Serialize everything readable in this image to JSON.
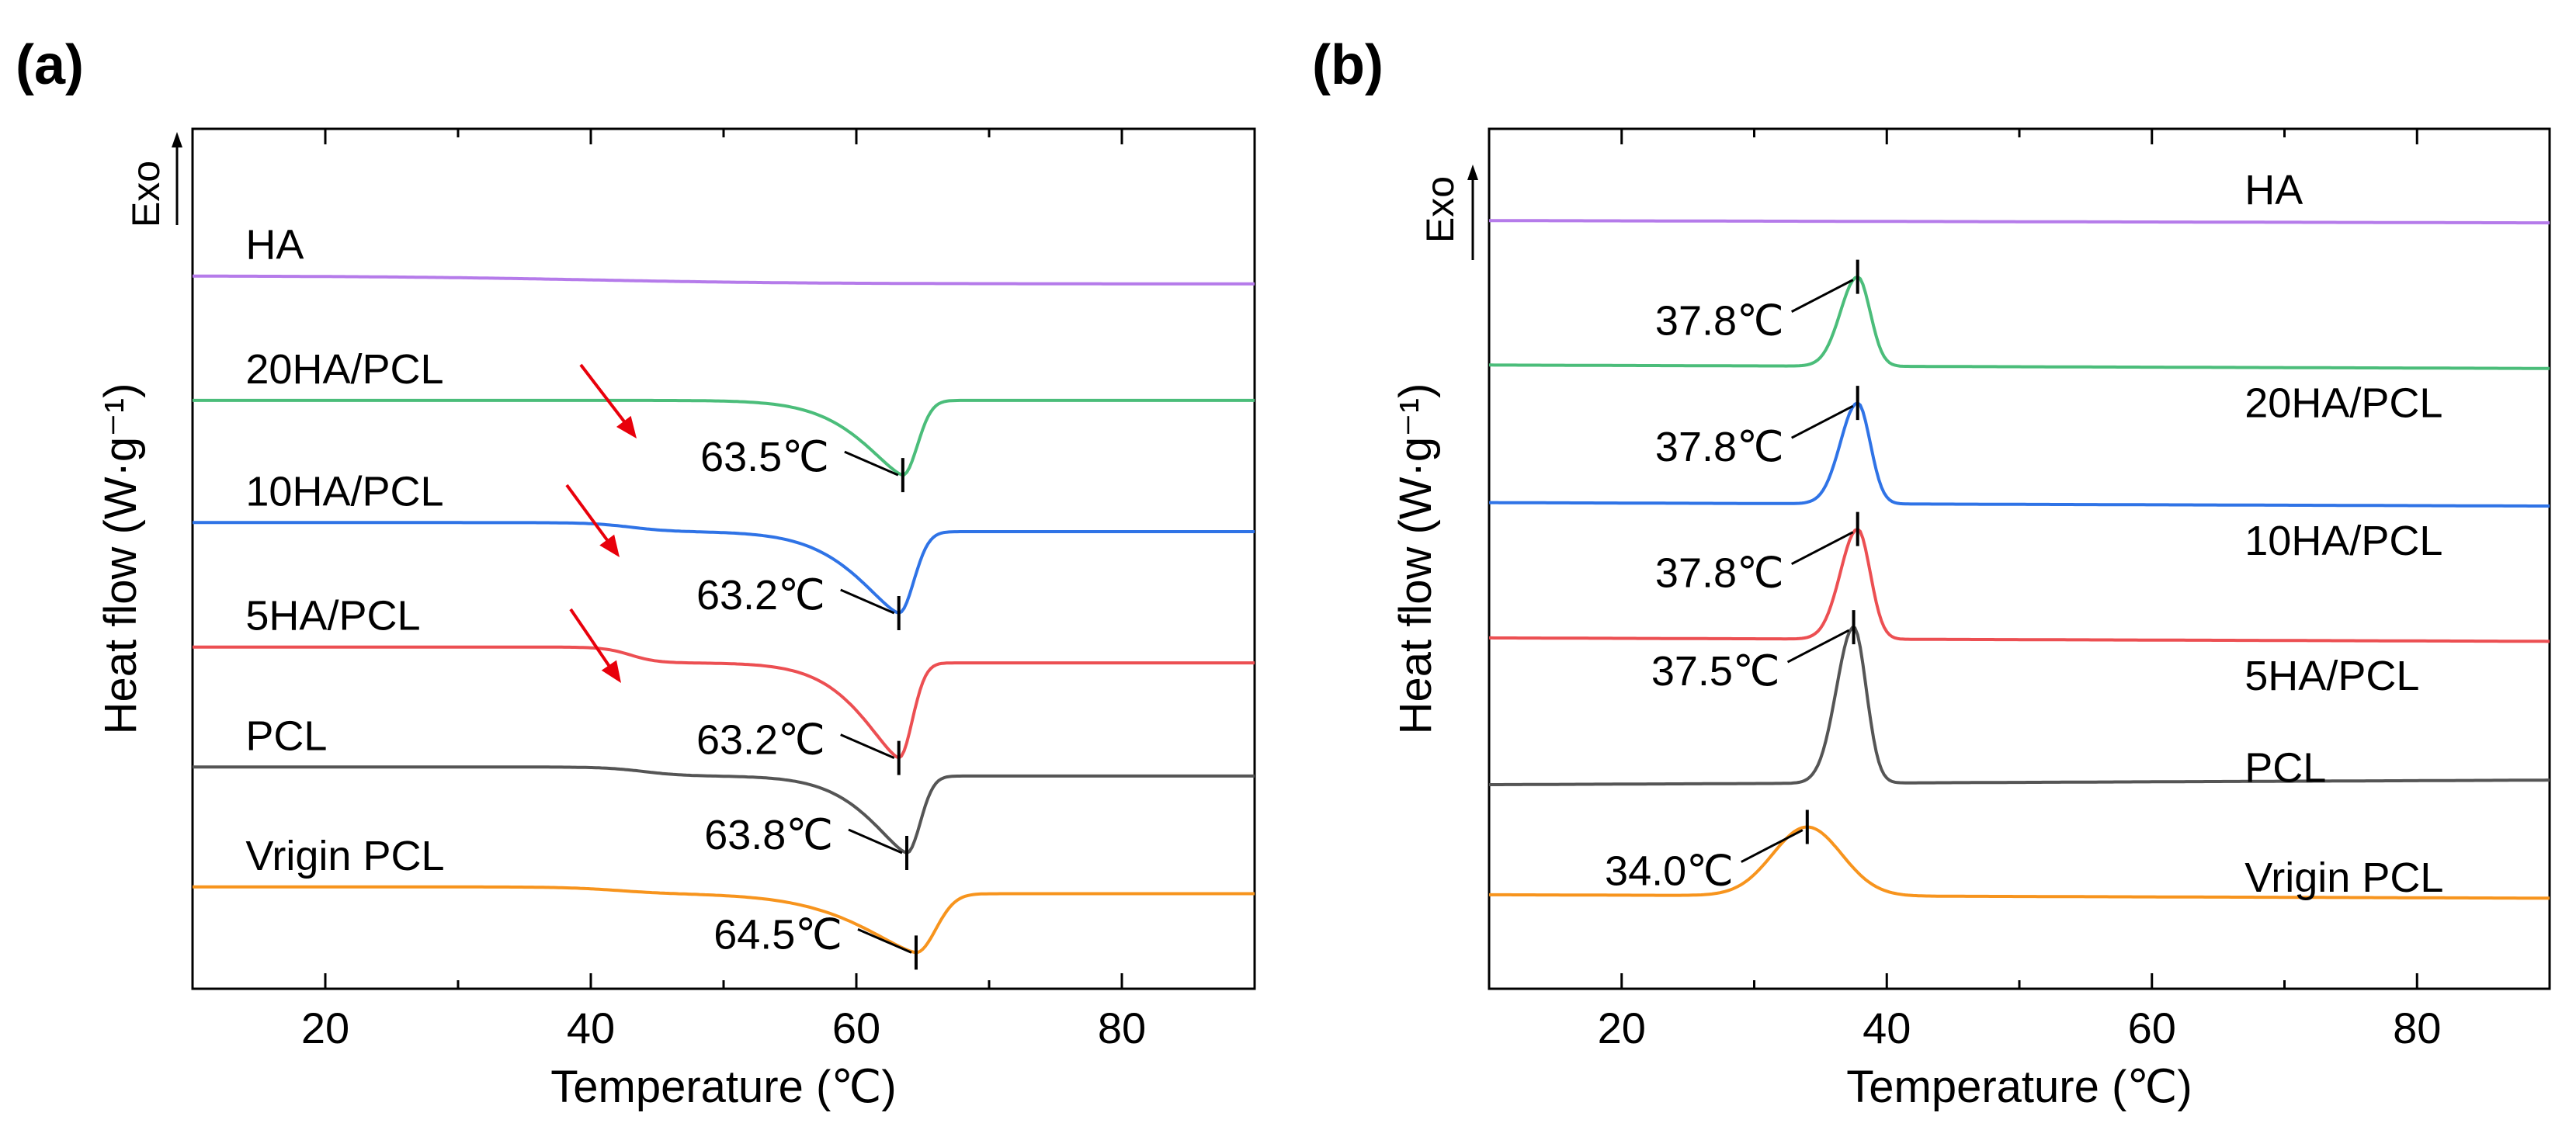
{
  "colors": {
    "HA": "#b57bea",
    "20HA/PCL": "#4bbd7a",
    "10HA/PCL": "#2f73e6",
    "5HA/PCL": "#ec4f52",
    "PCL": "#555555",
    "Vrigin PCL": "#f7941d",
    "arrow": "#e8000b"
  },
  "chart_data": [
    {
      "type": "line",
      "panel_label": "(a)",
      "xlabel": "Temperature (℃)",
      "ylabel": "Heat flow (W·g⁻¹)",
      "exo_label": "Exo",
      "xlim": [
        10,
        90
      ],
      "xticks": [
        "20",
        "40",
        "60",
        "80"
      ],
      "series": [
        {
          "name": "HA",
          "offset": 27.5,
          "peak": null,
          "peak_label": null
        },
        {
          "name": "20HA/PCL",
          "offset": 22.0,
          "peak": 63.5,
          "peak_label": "63.5℃"
        },
        {
          "name": "10HA/PCL",
          "offset": 16.6,
          "peak": 63.2,
          "peak_label": "63.2℃"
        },
        {
          "name": "5HA/PCL",
          "offset": 11.1,
          "peak": 63.2,
          "peak_label": "63.2℃"
        },
        {
          "name": "PCL",
          "offset": 5.8,
          "peak": 63.8,
          "peak_label": "63.8℃"
        },
        {
          "name": "Vrigin PCL",
          "offset": 0.5,
          "peak": 64.5,
          "peak_label": "64.5℃"
        }
      ]
    },
    {
      "type": "line",
      "panel_label": "(b)",
      "xlabel": "Temperature (℃)",
      "ylabel": "Heat flow (W·g⁻¹)",
      "exo_label": "Exo",
      "xlim": [
        10,
        90
      ],
      "xticks": [
        "20",
        "40",
        "60",
        "80"
      ],
      "series": [
        {
          "name": "HA",
          "offset": 31.0,
          "peak": null,
          "peak_label": null
        },
        {
          "name": "20HA/PCL",
          "offset": 24.7,
          "peak": 37.8,
          "peak_label": "37.8℃"
        },
        {
          "name": "10HA/PCL",
          "offset": 18.7,
          "peak": 37.8,
          "peak_label": "37.8℃"
        },
        {
          "name": "5HA/PCL",
          "offset": 12.8,
          "peak": 37.8,
          "peak_label": "37.8℃"
        },
        {
          "name": "PCL",
          "offset": 6.4,
          "peak": 37.5,
          "peak_label": "37.5℃"
        },
        {
          "name": "Vrigin PCL",
          "offset": 1.6,
          "peak": 34.0,
          "peak_label": "34.0℃"
        }
      ]
    }
  ]
}
